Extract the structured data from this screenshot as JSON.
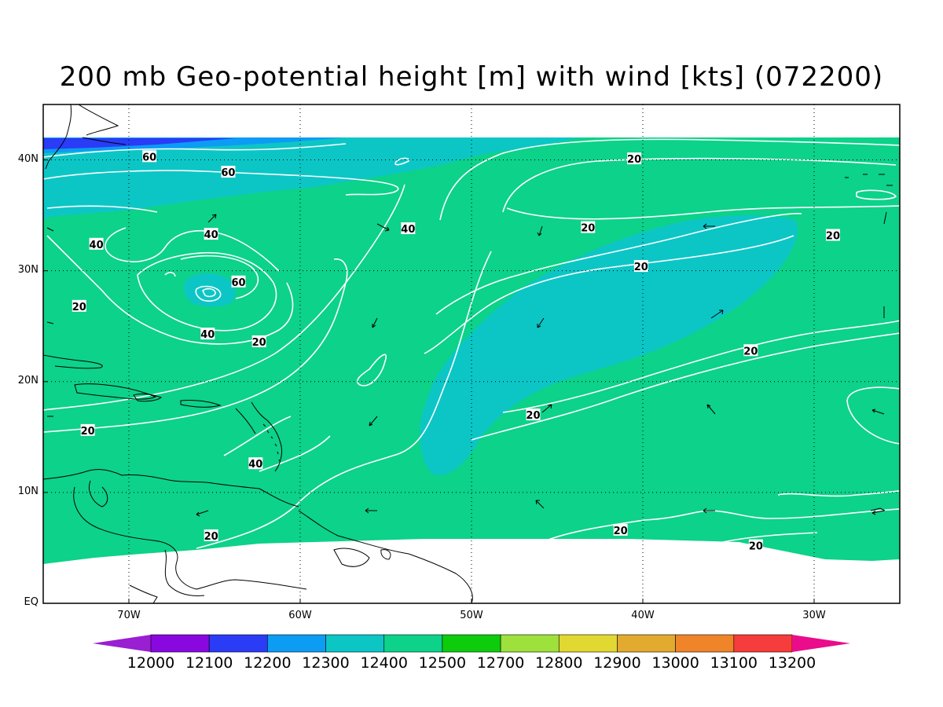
{
  "title": "200 mb Geo-potential height [m] with wind [kts] (072200)",
  "axes": {
    "lat_ticks": [
      {
        "value": 40,
        "label": "40N"
      },
      {
        "value": 30,
        "label": "30N"
      },
      {
        "value": 20,
        "label": "20N"
      },
      {
        "value": 10,
        "label": "10N"
      },
      {
        "value": 0,
        "label": "EQ"
      }
    ],
    "lon_ticks": [
      {
        "value": -70,
        "label": "70W"
      },
      {
        "value": -60,
        "label": "60W"
      },
      {
        "value": -50,
        "label": "50W"
      },
      {
        "value": -40,
        "label": "40W"
      },
      {
        "value": -30,
        "label": "30W"
      }
    ],
    "lon_range": [
      -75,
      -25
    ],
    "lat_range": [
      0,
      45
    ],
    "grid": true
  },
  "colorbar": {
    "levels": [
      "12000",
      "12100",
      "12200",
      "12300",
      "12400",
      "12500",
      "12700",
      "12800",
      "12900",
      "13000",
      "13100",
      "13200"
    ],
    "colors": [
      "#9a1ed2",
      "#8a08e0",
      "#2a3cf6",
      "#0c9cf4",
      "#0cc6c6",
      "#0cd28a",
      "#0ccc0c",
      "#9ee03c",
      "#e2d832",
      "#e2aa2e",
      "#f08428",
      "#f63c3c",
      "#ea0c8a"
    ]
  },
  "fill_colors": {
    "main": "#0cd28a",
    "teal": "#0cc6c6",
    "blue": "#0c9cf4",
    "dark_blue": "#2a3cf6"
  },
  "wind_contour_labels": [
    {
      "text": "60",
      "lon": -68.8,
      "lat": 40.3
    },
    {
      "text": "60",
      "lon": -64.2,
      "lat": 38.9
    },
    {
      "text": "40",
      "lon": -65.2,
      "lat": 33.3
    },
    {
      "text": "40",
      "lon": -71.9,
      "lat": 32.4
    },
    {
      "text": "40",
      "lon": -53.7,
      "lat": 33.8
    },
    {
      "text": "60",
      "lon": -63.6,
      "lat": 29.0
    },
    {
      "text": "20",
      "lon": -72.9,
      "lat": 26.8
    },
    {
      "text": "40",
      "lon": -65.4,
      "lat": 24.3
    },
    {
      "text": "20",
      "lon": -62.4,
      "lat": 23.6
    },
    {
      "text": "20",
      "lon": -72.4,
      "lat": 15.6
    },
    {
      "text": "40",
      "lon": -62.6,
      "lat": 12.6
    },
    {
      "text": "20",
      "lon": -65.2,
      "lat": 6.1
    },
    {
      "text": "20",
      "lon": -40.5,
      "lat": 40.1
    },
    {
      "text": "20",
      "lon": -43.2,
      "lat": 33.9
    },
    {
      "text": "20",
      "lon": -40.1,
      "lat": 30.4
    },
    {
      "text": "20",
      "lon": -28.9,
      "lat": 33.2
    },
    {
      "text": "20",
      "lon": -33.7,
      "lat": 22.8
    },
    {
      "text": "20",
      "lon": -46.4,
      "lat": 17.0
    },
    {
      "text": "20",
      "lon": -41.3,
      "lat": 6.6
    },
    {
      "text": "20",
      "lon": -33.4,
      "lat": 5.2
    }
  ]
}
